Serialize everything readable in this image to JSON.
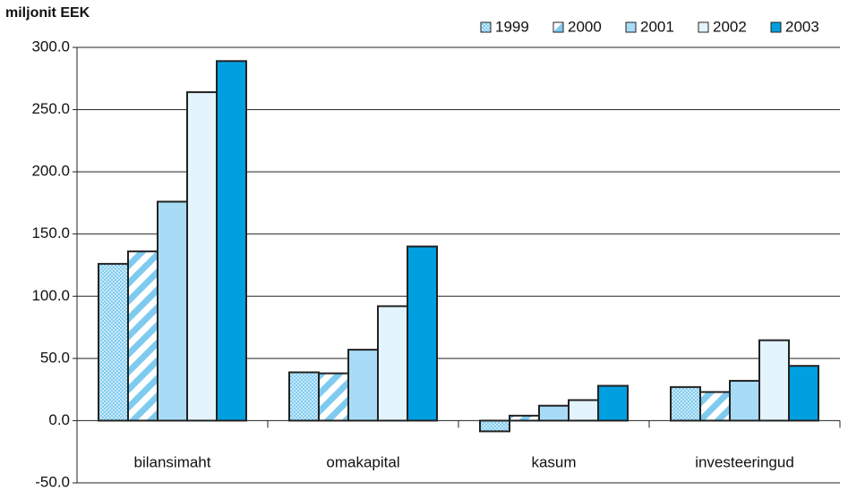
{
  "chart_data": {
    "type": "bar",
    "title": "miljonit EEK",
    "categories": [
      "bilansimaht",
      "omakapital",
      "kasum",
      "investeeringud"
    ],
    "series": [
      {
        "name": "1999",
        "color": "#9fd6f2",
        "fill_style": "dots",
        "values": [
          126,
          38.8,
          -8.6,
          27
        ]
      },
      {
        "name": "2000",
        "color": "#7fcbef",
        "fill_style": "stripes",
        "values": [
          136,
          38,
          4,
          23
        ]
      },
      {
        "name": "2001",
        "color": "#a8dcf6",
        "fill_style": "solid",
        "values": [
          176,
          57,
          12,
          32
        ]
      },
      {
        "name": "2002",
        "color": "#e3f4fc",
        "fill_style": "solid",
        "values": [
          264,
          92,
          16.5,
          64.6
        ]
      },
      {
        "name": "2003",
        "color": "#009fe0",
        "fill_style": "solid",
        "values": [
          289,
          140,
          28,
          44
        ]
      }
    ],
    "ylim": [
      -50,
      300
    ],
    "yticks": [
      {
        "value": -50,
        "label": "-50.0"
      },
      {
        "value": 0,
        "label": "0.0"
      },
      {
        "value": 50,
        "label": "50.0"
      },
      {
        "value": 100,
        "label": "100.0"
      },
      {
        "value": 150,
        "label": "150.0"
      },
      {
        "value": 200,
        "label": "200.0"
      },
      {
        "value": 250,
        "label": "250.0"
      },
      {
        "value": 300,
        "label": "300.0"
      }
    ],
    "grid": true,
    "legend": "top-right"
  }
}
